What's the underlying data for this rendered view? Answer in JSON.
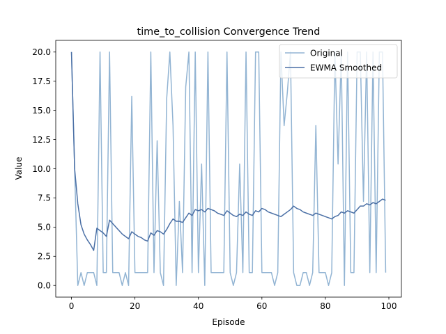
{
  "chart_data": {
    "type": "line",
    "title": "time_to_collision Convergence Trend",
    "xlabel": "Episode",
    "ylabel": "Value",
    "xlim": [
      -4.95,
      103.95
    ],
    "ylim": [
      -1.0,
      21.0
    ],
    "xticks": [
      0,
      20,
      40,
      60,
      80,
      100
    ],
    "yticks": [
      0.0,
      2.5,
      5.0,
      7.5,
      10.0,
      12.5,
      15.0,
      17.5,
      20.0
    ],
    "ytick_labels": [
      "0.0",
      "2.5",
      "5.0",
      "7.5",
      "10.0",
      "12.5",
      "15.0",
      "17.5",
      "20.0"
    ],
    "grid": false,
    "legend_position": "top-right",
    "series": [
      {
        "name": "Original",
        "color": "#92b4d3",
        "x": [
          0,
          1,
          2,
          3,
          4,
          5,
          6,
          7,
          8,
          9,
          10,
          11,
          12,
          13,
          14,
          15,
          16,
          17,
          18,
          19,
          20,
          21,
          22,
          23,
          24,
          25,
          26,
          27,
          28,
          29,
          30,
          31,
          32,
          33,
          34,
          35,
          36,
          37,
          38,
          39,
          40,
          41,
          42,
          43,
          44,
          45,
          46,
          47,
          48,
          49,
          50,
          51,
          52,
          53,
          54,
          55,
          56,
          57,
          58,
          59,
          60,
          61,
          62,
          63,
          64,
          65,
          66,
          67,
          68,
          69,
          70,
          71,
          72,
          73,
          74,
          75,
          76,
          77,
          78,
          79,
          80,
          81,
          82,
          83,
          84,
          85,
          86,
          87,
          88,
          89,
          90,
          91,
          92,
          93,
          94,
          95,
          96,
          97,
          98,
          99
        ],
        "values": [
          20.0,
          10.0,
          0.0,
          1.1,
          0.0,
          1.1,
          1.1,
          1.1,
          0.0,
          20.0,
          1.1,
          1.1,
          20.0,
          1.1,
          1.1,
          1.1,
          0.0,
          1.1,
          0.0,
          16.2,
          1.1,
          1.1,
          1.1,
          1.1,
          1.1,
          20.0,
          1.1,
          12.4,
          1.1,
          0.0,
          16.0,
          20.0,
          13.7,
          0.0,
          7.2,
          1.1,
          17.0,
          20.0,
          1.1,
          20.0,
          1.1,
          10.4,
          0.0,
          20.0,
          1.1,
          1.1,
          1.1,
          1.1,
          1.1,
          20.0,
          1.1,
          0.0,
          1.1,
          10.4,
          1.1,
          20.0,
          1.1,
          1.1,
          20.0,
          20.0,
          1.1,
          1.1,
          1.1,
          1.1,
          0.0,
          1.1,
          20.0,
          13.7,
          16.5,
          20.0,
          1.1,
          0.0,
          0.0,
          1.1,
          1.1,
          0.0,
          1.1,
          13.7,
          1.1,
          1.1,
          1.1,
          0.0,
          1.1,
          20.0,
          10.4,
          20.0,
          0.0,
          20.0,
          1.1,
          1.1,
          20.0,
          20.0,
          7.2,
          20.0,
          1.1,
          20.0,
          1.1,
          20.0,
          20.0,
          1.1
        ]
      },
      {
        "name": "EWMA Smoothed",
        "color": "#4a6fa5",
        "x": [
          0,
          1,
          2,
          3,
          4,
          5,
          6,
          7,
          8,
          9,
          10,
          11,
          12,
          13,
          14,
          15,
          16,
          17,
          18,
          19,
          20,
          21,
          22,
          23,
          24,
          25,
          26,
          27,
          28,
          29,
          30,
          31,
          32,
          33,
          34,
          35,
          36,
          37,
          38,
          39,
          40,
          41,
          42,
          43,
          44,
          45,
          46,
          47,
          48,
          49,
          50,
          51,
          52,
          53,
          54,
          55,
          56,
          57,
          58,
          59,
          60,
          61,
          62,
          63,
          64,
          65,
          66,
          67,
          68,
          69,
          70,
          71,
          72,
          73,
          74,
          75,
          76,
          77,
          78,
          79,
          80,
          81,
          82,
          83,
          84,
          85,
          86,
          87,
          88,
          89,
          90,
          91,
          92,
          93,
          94,
          95,
          96,
          97,
          98,
          99
        ],
        "values": [
          20.0,
          10.0,
          7.0,
          5.2,
          4.4,
          3.9,
          3.5,
          3.0,
          4.9,
          4.7,
          4.5,
          4.2,
          5.6,
          5.3,
          5.0,
          4.7,
          4.4,
          4.2,
          4.0,
          4.6,
          4.4,
          4.2,
          4.1,
          3.9,
          3.8,
          4.5,
          4.3,
          4.7,
          4.6,
          4.4,
          4.8,
          5.3,
          5.7,
          5.5,
          5.5,
          5.4,
          5.8,
          6.2,
          6.0,
          6.5,
          6.4,
          6.5,
          6.3,
          6.6,
          6.5,
          6.4,
          6.2,
          6.1,
          6.0,
          6.4,
          6.2,
          6.0,
          5.9,
          6.1,
          6.0,
          6.3,
          6.1,
          6.0,
          6.4,
          6.3,
          6.6,
          6.5,
          6.3,
          6.2,
          6.1,
          6.0,
          5.9,
          6.1,
          6.3,
          6.5,
          6.8,
          6.6,
          6.5,
          6.3,
          6.2,
          6.1,
          6.0,
          6.2,
          6.1,
          6.0,
          5.9,
          5.8,
          5.7,
          5.9,
          6.0,
          6.3,
          6.2,
          6.4,
          6.3,
          6.2,
          6.5,
          6.8,
          6.8,
          7.0,
          6.9,
          7.1,
          7.0,
          7.2,
          7.4,
          7.3
        ]
      }
    ]
  }
}
